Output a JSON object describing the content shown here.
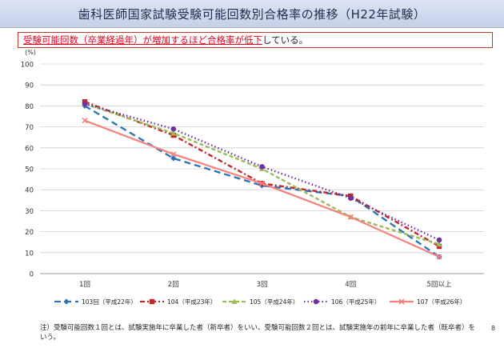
{
  "title": "歯科医師国家試験受験可能回数別合格率の推移（H22年試験）",
  "callout": {
    "highlight": "受験可能回数（卒業経過年）が増加するほど合格率が低下",
    "rest": "している。"
  },
  "note": "注）受験可能回数１回とは、試験実施年に卒業した者（新卒者）をいい、受験可能回数２回とは、試験実施年の前年に卒業した者（既卒者）をいう。",
  "page_number": "8",
  "chart_data": {
    "type": "line",
    "title": "",
    "xlabel": "",
    "ylabel": "(%)",
    "ylim": [
      0,
      100
    ],
    "yticks": [
      0,
      10,
      20,
      30,
      40,
      50,
      60,
      70,
      80,
      90,
      100
    ],
    "grid": true,
    "legend_position": "bottom",
    "categories": [
      "1回",
      "2回",
      "3回",
      "4回",
      "5回以上"
    ],
    "series": [
      {
        "name": "103回（平成22年）",
        "values": [
          80,
          55,
          42,
          37,
          8
        ],
        "color": "#2e75b6",
        "dash": "8,5",
        "marker": "diamond"
      },
      {
        "name": "104（平成23年）",
        "values": [
          82,
          66,
          43,
          37,
          13
        ],
        "color": "#c0262c",
        "dash": "6,3,2,3",
        "marker": "square"
      },
      {
        "name": "105（平成24年）",
        "values": [
          81,
          67,
          50,
          27,
          14
        ],
        "color": "#9bbb59",
        "dash": "5,3",
        "marker": "triangle"
      },
      {
        "name": "106（平成25年）",
        "values": [
          81,
          69,
          51,
          36,
          16
        ],
        "color": "#7030a0",
        "dash": "1.5,3",
        "marker": "circle"
      },
      {
        "name": "107（平成26年）",
        "values": [
          73,
          57,
          43,
          27,
          8
        ],
        "color": "#f4817c",
        "dash": "",
        "marker": "x"
      }
    ]
  }
}
